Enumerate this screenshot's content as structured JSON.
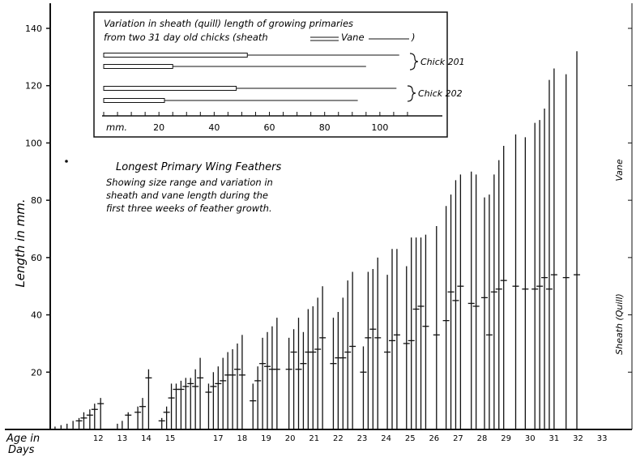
{
  "chart_data": {
    "type": "bar",
    "title": "Longest Primary Wing Feathers",
    "subtitle_lines": [
      "Showing size range and variation in",
      "sheath and vane length during the",
      "first three weeks of feather growth."
    ],
    "ylabel": "Length in mm.",
    "xlabel_lines": [
      "Age in",
      "Days"
    ],
    "ylim": [
      0,
      140
    ],
    "yticks": [
      20,
      40,
      60,
      80,
      100,
      120,
      140
    ],
    "xlim": [
      10,
      33.3
    ],
    "xtick_labels": [
      "12",
      "13",
      "14",
      "15",
      "17",
      "18",
      "19",
      "20",
      "21",
      "22",
      "23",
      "24",
      "25",
      "26",
      "27",
      "28",
      "29",
      "30",
      "31",
      "32",
      "33"
    ],
    "xtick_positions": [
      12,
      13,
      14,
      15,
      17,
      18,
      19,
      20,
      21,
      22,
      23,
      24,
      25,
      26,
      27,
      28,
      29,
      30,
      31,
      32,
      33
    ],
    "right_labels": {
      "top": "Vane",
      "bottom": "Sheath (Quill)"
    },
    "series": [
      {
        "x": 10.2,
        "total": 1
      },
      {
        "x": 10.45,
        "total": 1.5
      },
      {
        "x": 10.7,
        "total": 2
      },
      {
        "x": 10.95,
        "total": 3
      },
      {
        "x": 11.2,
        "total": 4,
        "sheath": 3
      },
      {
        "x": 11.4,
        "total": 6,
        "sheath": 4
      },
      {
        "x": 11.65,
        "total": 7,
        "sheath": 5
      },
      {
        "x": 11.85,
        "total": 9,
        "sheath": 7
      },
      {
        "x": 12.1,
        "total": 11,
        "sheath": 9
      },
      {
        "x": 12.8,
        "total": 2
      },
      {
        "x": 13.0,
        "total": 3
      },
      {
        "x": 13.25,
        "total": 6,
        "sheath": 5
      },
      {
        "x": 13.65,
        "total": 8,
        "sheath": 6
      },
      {
        "x": 13.85,
        "total": 11,
        "sheath": 8
      },
      {
        "x": 14.1,
        "total": 21,
        "sheath": 18
      },
      {
        "x": 14.65,
        "total": 4,
        "sheath": 3
      },
      {
        "x": 14.85,
        "total": 8,
        "sheath": 6
      },
      {
        "x": 15.05,
        "total": 16,
        "sheath": 11
      },
      {
        "x": 15.25,
        "total": 16,
        "sheath": 14
      },
      {
        "x": 15.45,
        "total": 17,
        "sheath": 14
      },
      {
        "x": 15.65,
        "total": 18,
        "sheath": 15
      },
      {
        "x": 15.85,
        "total": 18,
        "sheath": 16
      },
      {
        "x": 16.05,
        "total": 21,
        "sheath": 15
      },
      {
        "x": 16.25,
        "total": 25,
        "sheath": 18
      },
      {
        "x": 16.6,
        "total": 16,
        "sheath": 13
      },
      {
        "x": 16.8,
        "total": 20,
        "sheath": 15
      },
      {
        "x": 17.0,
        "total": 22,
        "sheath": 16
      },
      {
        "x": 17.2,
        "total": 25,
        "sheath": 17
      },
      {
        "x": 17.4,
        "total": 27,
        "sheath": 19
      },
      {
        "x": 17.6,
        "total": 28,
        "sheath": 19
      },
      {
        "x": 17.8,
        "total": 30,
        "sheath": 21
      },
      {
        "x": 18.0,
        "total": 33,
        "sheath": 19
      },
      {
        "x": 18.45,
        "total": 16,
        "sheath": 10
      },
      {
        "x": 18.65,
        "total": 22,
        "sheath": 17
      },
      {
        "x": 18.85,
        "total": 32,
        "sheath": 23
      },
      {
        "x": 19.05,
        "total": 34,
        "sheath": 22
      },
      {
        "x": 19.25,
        "total": 36,
        "sheath": 21
      },
      {
        "x": 19.45,
        "total": 39,
        "sheath": 21
      },
      {
        "x": 19.95,
        "total": 32,
        "sheath": 21
      },
      {
        "x": 20.15,
        "total": 35,
        "sheath": 27
      },
      {
        "x": 20.35,
        "total": 39,
        "sheath": 21
      },
      {
        "x": 20.55,
        "total": 34,
        "sheath": 23
      },
      {
        "x": 20.75,
        "total": 42,
        "sheath": 27
      },
      {
        "x": 20.95,
        "total": 43,
        "sheath": 27
      },
      {
        "x": 21.15,
        "total": 46,
        "sheath": 28
      },
      {
        "x": 21.35,
        "total": 50,
        "sheath": 32
      },
      {
        "x": 21.8,
        "total": 39,
        "sheath": 23
      },
      {
        "x": 22.0,
        "total": 41,
        "sheath": 25
      },
      {
        "x": 22.2,
        "total": 46,
        "sheath": 25
      },
      {
        "x": 22.4,
        "total": 52,
        "sheath": 27
      },
      {
        "x": 22.6,
        "total": 55,
        "sheath": 29
      },
      {
        "x": 23.05,
        "total": 29,
        "sheath": 20
      },
      {
        "x": 23.25,
        "total": 55,
        "sheath": 32
      },
      {
        "x": 23.45,
        "total": 56,
        "sheath": 35
      },
      {
        "x": 23.65,
        "total": 60,
        "sheath": 32
      },
      {
        "x": 24.05,
        "total": 54,
        "sheath": 27
      },
      {
        "x": 24.25,
        "total": 63,
        "sheath": 31
      },
      {
        "x": 24.45,
        "total": 63,
        "sheath": 33
      },
      {
        "x": 24.85,
        "total": 57,
        "sheath": 30
      },
      {
        "x": 25.05,
        "total": 67,
        "sheath": 31
      },
      {
        "x": 25.25,
        "total": 67,
        "sheath": 42
      },
      {
        "x": 25.45,
        "total": 67,
        "sheath": 43
      },
      {
        "x": 25.65,
        "total": 68,
        "sheath": 36
      },
      {
        "x": 26.1,
        "total": 71,
        "sheath": 33
      },
      {
        "x": 26.5,
        "total": 78,
        "sheath": 38
      },
      {
        "x": 26.7,
        "total": 82,
        "sheath": 48
      },
      {
        "x": 26.9,
        "total": 87,
        "sheath": 45
      },
      {
        "x": 27.1,
        "total": 89,
        "sheath": 50
      },
      {
        "x": 27.55,
        "total": 90,
        "sheath": 44
      },
      {
        "x": 27.75,
        "total": 89,
        "sheath": 43
      },
      {
        "x": 28.1,
        "total": 81,
        "sheath": 46
      },
      {
        "x": 28.3,
        "total": 82,
        "sheath": 33
      },
      {
        "x": 28.5,
        "total": 89,
        "sheath": 48
      },
      {
        "x": 28.7,
        "total": 94,
        "sheath": 49
      },
      {
        "x": 28.9,
        "total": 99,
        "sheath": 52
      },
      {
        "x": 29.4,
        "total": 103,
        "sheath": 50
      },
      {
        "x": 29.8,
        "total": 102,
        "sheath": 49
      },
      {
        "x": 30.2,
        "total": 107,
        "sheath": 49
      },
      {
        "x": 30.4,
        "total": 108,
        "sheath": 50
      },
      {
        "x": 30.6,
        "total": 112,
        "sheath": 53
      },
      {
        "x": 30.8,
        "total": 122,
        "sheath": 49
      },
      {
        "x": 31.0,
        "total": 126,
        "sheath": 54
      },
      {
        "x": 31.5,
        "total": 124,
        "sheath": 53
      },
      {
        "x": 31.95,
        "total": 132,
        "sheath": 54
      }
    ],
    "inset": {
      "title_lines": [
        "Variation in sheath (quill) length of growing primaries",
        "from two 31 day old chicks (sheath",
        "Vane",
        ")"
      ],
      "xlabel": "mm.",
      "xtick_labels": [
        "20",
        "40",
        "60",
        "80",
        "100"
      ],
      "xtick_values": [
        20,
        40,
        60,
        80,
        100
      ],
      "xlim": [
        0,
        115
      ],
      "groups": [
        {
          "label": "Chick 201",
          "feathers": [
            {
              "sheath": 52,
              "vane": 107
            },
            {
              "sheath": 25,
              "vane": 95
            }
          ]
        },
        {
          "label": "Chick 202",
          "feathers": [
            {
              "sheath": 48,
              "vane": 106
            },
            {
              "sheath": 22,
              "vane": 92
            }
          ]
        }
      ]
    }
  }
}
